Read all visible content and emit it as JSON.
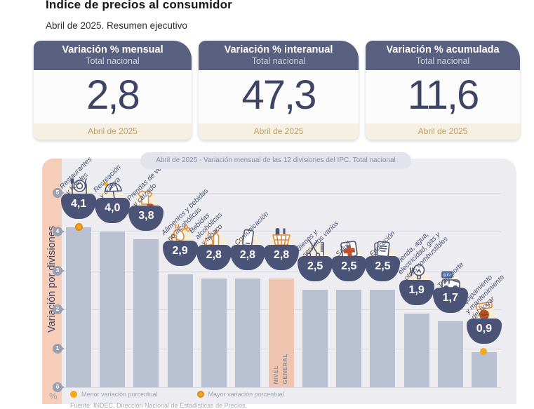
{
  "page": {
    "title": "Índice de precios al consumidor",
    "subtitle": "Abril de 2025. Resumen ejecutivo"
  },
  "summary_cards": [
    {
      "title": "Variación % mensual",
      "scope": "Total nacional",
      "value": "2,8",
      "period": "Abril de 2025"
    },
    {
      "title": "Variación % interanual",
      "scope": "Total nacional",
      "value": "47,3",
      "period": "Abril de 2025"
    },
    {
      "title": "Variación % acumulada",
      "scope": "Total nacional",
      "value": "11,6",
      "period": "Abril de 2025"
    }
  ],
  "chart_data": {
    "type": "bar",
    "title": "Abril de 2025 - Variación mensual de las 12 divisiones del IPC. Total nacional",
    "ylabel": "Variación por divisiones",
    "y_unit": "%",
    "ylim": [
      0,
      5
    ],
    "y_ticks": [
      0,
      1,
      2,
      3,
      4,
      5
    ],
    "grid": true,
    "legend_position": "bottom",
    "categories": [
      "Restaurantes y hoteles",
      "Recreación y cultura",
      "Prendas de vestir y calzado",
      "Alimentos y bebidas no alcohólicas",
      "Bebidas alcohólicas y tabaco",
      "Comunicación",
      "Nivel general",
      "Bienes y servicios varios",
      "Salud",
      "Educación",
      "Vivienda, agua, electricidad, gas y otros combustibles",
      "Transporte",
      "Equipamiento y mantenimiento del hogar"
    ],
    "values": [
      4.1,
      4.0,
      3.8,
      2.9,
      2.8,
      2.8,
      2.8,
      2.5,
      2.5,
      2.5,
      1.9,
      1.7,
      0.9
    ],
    "bars": [
      {
        "category": "Restaurantes y hoteles",
        "label_lines": "Restaurantes\ny hoteles",
        "value": 4.1,
        "display": "4,1",
        "icon": "restaurant-icon",
        "marker": "mayor"
      },
      {
        "category": "Recreación y cultura",
        "label_lines": "Recreación\ny cultura",
        "value": 4.0,
        "display": "4,0",
        "icon": "recreation-icon"
      },
      {
        "category": "Prendas de vestir y calzado",
        "label_lines": "Prendas de vestir\ny calzado",
        "value": 3.8,
        "display": "3,8",
        "icon": "clothing-icon"
      },
      {
        "category": "Alimentos y bebidas no alcohólicas",
        "label_lines": "Alimentos y bebidas\nno alcohólicas",
        "value": 2.9,
        "display": "2,9",
        "icon": "food-icon"
      },
      {
        "category": "Bebidas alcohólicas y tabaco",
        "label_lines": "Bebidas\nalcohólicas\ny tabaco",
        "value": 2.8,
        "display": "2,8",
        "icon": "alcohol-tobacco-icon"
      },
      {
        "category": "Comunicación",
        "label_lines": "Comunicación",
        "value": 2.8,
        "display": "2,8",
        "icon": "communication-icon"
      },
      {
        "category": "Nivel general",
        "bar_text": "NIVEL\nGENERAL",
        "value": 2.8,
        "display": "2,8",
        "icon": "basket-icon",
        "highlight": true
      },
      {
        "category": "Bienes y servicios varios",
        "label_lines": "Bienes y\nservicios varios",
        "value": 2.5,
        "display": "2,5",
        "icon": "misc-goods-icon"
      },
      {
        "category": "Salud",
        "label_lines": "Salud",
        "value": 2.5,
        "display": "2,5",
        "icon": "health-icon"
      },
      {
        "category": "Educación",
        "label_lines": "Educación",
        "value": 2.5,
        "display": "2,5",
        "icon": "education-icon"
      },
      {
        "category": "Vivienda, agua, electricidad, gas y otros combustibles",
        "label_lines": "Vivienda, agua,\nelectricidad, gas y\notros combustibles",
        "value": 1.9,
        "display": "1,9",
        "icon": "housing-icon"
      },
      {
        "category": "Transporte",
        "label_lines": "Transporte",
        "value": 1.7,
        "display": "1,7",
        "icon": "transport-icon"
      },
      {
        "category": "Equipamiento y mantenimiento del hogar",
        "label_lines": "Equipamiento\ny mantenimiento\ndel hogar",
        "value": 0.9,
        "display": "0,9",
        "icon": "household-equipment-icon",
        "marker": "menor"
      }
    ],
    "legend": [
      {
        "label": "Menor variación porcentual",
        "marker": "solid-dot"
      },
      {
        "label": "Mayor variación porcentual",
        "marker": "ringed-dot"
      }
    ]
  },
  "source_note": "Fuente: INDEC, Dirección Nacional de Estadísticas de Precios.",
  "colors": {
    "card_header": "#596080",
    "card_value": "#3d4566",
    "card_footer_bg": "#f5f0e1",
    "card_footer_text": "#c2a06b",
    "chart_bg": "#ededf1",
    "axis_strip": "#f6cdb8",
    "bar": "#b9c0d1",
    "highlight_bar": "#efc4ae",
    "value_bowl": "#4b5377",
    "marker_dot": "#f2a91c",
    "marker_ring": "#e0861d",
    "grid_line": "#d7d8e1",
    "tick": "#9aa0b2"
  }
}
